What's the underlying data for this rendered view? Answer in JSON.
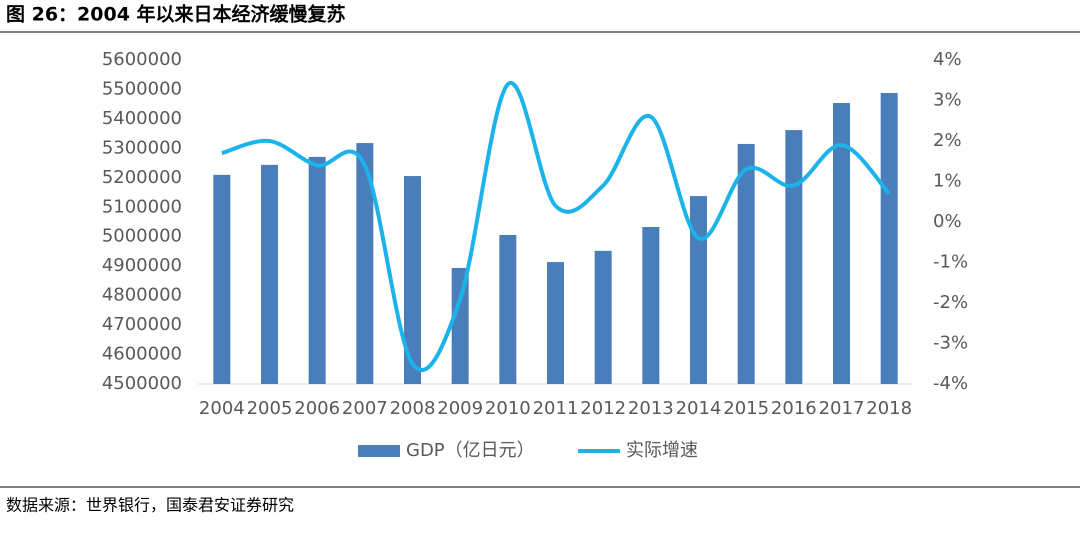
{
  "chart_data": {
    "type": "bar-line",
    "title": "图 26：2004 年以来日本经济缓慢复苏",
    "source": "数据来源：世界银行，国泰君安证券研究",
    "categories": [
      "2004",
      "2005",
      "2006",
      "2007",
      "2008",
      "2009",
      "2010",
      "2011",
      "2012",
      "2013",
      "2014",
      "2015",
      "2016",
      "2017",
      "2018"
    ],
    "series": [
      {
        "name": "GDP（亿日元）",
        "type": "bar",
        "color": "#4a7ebb",
        "values": [
          5210000,
          5244000,
          5271000,
          5318000,
          5206000,
          4894000,
          5006000,
          4914000,
          4952000,
          5033000,
          5138000,
          5315000,
          5362000,
          5454000,
          5488000
        ]
      },
      {
        "name": "实际增速",
        "type": "line",
        "axis": "y2",
        "color": "#1cb2ea",
        "values": [
          1.7,
          2.0,
          1.4,
          1.4,
          -3.5,
          -1.9,
          3.4,
          0.4,
          0.9,
          2.6,
          -0.4,
          1.3,
          0.9,
          1.9,
          0.7
        ]
      }
    ],
    "ylim": [
      4500000,
      5600000
    ],
    "yticks": [
      4500000,
      4600000,
      4700000,
      4800000,
      4900000,
      5000000,
      5100000,
      5200000,
      5300000,
      5400000,
      5500000,
      5600000
    ],
    "y2lim": [
      -4,
      4
    ],
    "y2ticks": [
      {
        "value": -4,
        "label": "-4%"
      },
      {
        "value": -3,
        "label": "-3%"
      },
      {
        "value": -2,
        "label": "-2%"
      },
      {
        "value": -1,
        "label": "-1%"
      },
      {
        "value": 0,
        "label": "0%"
      },
      {
        "value": 1,
        "label": "1%"
      },
      {
        "value": 2,
        "label": "2%"
      },
      {
        "value": 3,
        "label": "3%"
      },
      {
        "value": 4,
        "label": "4%"
      }
    ],
    "legend": "bottom"
  }
}
